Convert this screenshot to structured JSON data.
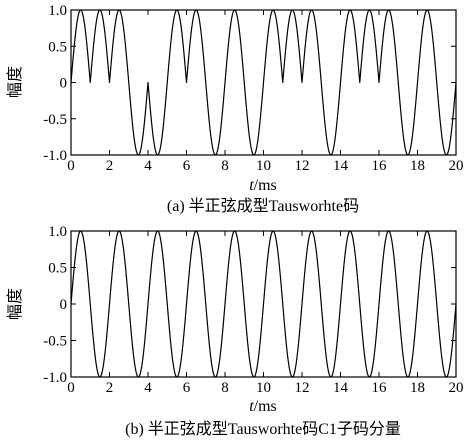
{
  "chart_data": [
    {
      "type": "line",
      "caption": "(a) 半正弦成型Tausworhte码",
      "xlabel": "t/ms",
      "xlabel_var": "t",
      "xlabel_unit": "/ms",
      "ylabel": "幅度",
      "xlim": [
        0,
        20
      ],
      "ylim": [
        -1,
        1
      ],
      "xticks": [
        "0",
        "2",
        "4",
        "6",
        "8",
        "10",
        "12",
        "14",
        "16",
        "18",
        "20"
      ],
      "yticks": [
        "1.0",
        "0.5",
        "0",
        "-0.5",
        "-1.0"
      ],
      "grid": false,
      "segment_period_ms": 1,
      "segment_sign": [
        1,
        1,
        1,
        -1,
        -1,
        1,
        1,
        -1,
        1,
        -1,
        1,
        1,
        1,
        -1,
        1,
        1,
        1,
        -1,
        1,
        -1
      ],
      "series": [
        {
          "values_desc": "y = s(k) * sin(pi * t), t in [k, k+1]"
        }
      ]
    },
    {
      "type": "line",
      "caption": "(b) 半正弦成型Tausworhte码C1子码分量",
      "xlabel": "t/ms",
      "xlabel_var": "t",
      "xlabel_unit": "/ms",
      "ylabel": "幅度",
      "xlim": [
        0,
        20
      ],
      "ylim": [
        -1,
        1
      ],
      "xticks": [
        "0",
        "2",
        "4",
        "6",
        "8",
        "10",
        "12",
        "14",
        "16",
        "18",
        "20"
      ],
      "yticks": [
        "1.0",
        "0.5",
        "0",
        "-0.5",
        "-1.0"
      ],
      "grid": false,
      "segment_period_ms": 1,
      "segment_sign": [
        1,
        -1,
        1,
        -1,
        1,
        -1,
        1,
        -1,
        1,
        -1,
        1,
        -1,
        1,
        -1,
        1,
        -1,
        1,
        -1,
        1,
        -1
      ],
      "series": [
        {
          "values_desc": "y = s(k) * sin(pi * t), t in [k, k+1]"
        }
      ]
    }
  ]
}
